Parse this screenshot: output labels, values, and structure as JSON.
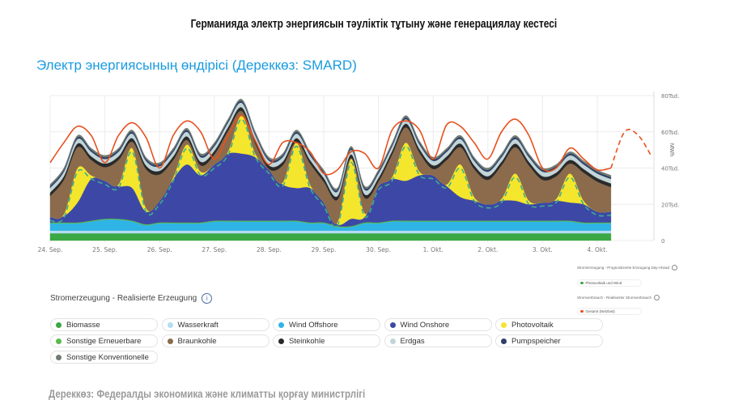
{
  "title": "Германияда электр энергиясын тәуліктік тұтыну және генерациялау кестесі",
  "subtitle": "Электр энергиясының өндірісі (Дереккөз: SMARD)",
  "source": "Дереккөз: Федералды экономика және климатты қорғау министрлігі",
  "legend": {
    "title": "Stromerzeugung - Realisierte Erzeugung",
    "info_icon": "info-icon",
    "items": [
      {
        "label": "Biomasse",
        "color": "#3aa845"
      },
      {
        "label": "Wasserkraft",
        "color": "#b5dcf3"
      },
      {
        "label": "Wind Offshore",
        "color": "#2fb4e6"
      },
      {
        "label": "Wind Onshore",
        "color": "#3d48a6"
      },
      {
        "label": "Photovoltaik",
        "color": "#f4e62c"
      },
      {
        "label": "Sonstige Erneuerbare",
        "color": "#58bb4a"
      },
      {
        "label": "Braunkohle",
        "color": "#8b6b4c"
      },
      {
        "label": "Steinkohle",
        "color": "#2a2a2a"
      },
      {
        "label": "Erdgas",
        "color": "#c2d5d9"
      },
      {
        "label": "Pumpspeicher",
        "color": "#2d3f66"
      },
      {
        "label": "Sonstige Konventionelle",
        "color": "#6f7b73"
      }
    ]
  },
  "right_legend": {
    "forecast_title": "Stromerzeugung - Prognostizierte Erzeugung Day-Ahead",
    "forecast_item": {
      "label": "Photovoltaik und Wind",
      "color": "#3aa845"
    },
    "consumption_title": "Stromverbrauch - Realisierter Stromverbrauch",
    "consumption_item": {
      "label": "Gesamt (Netzlast)",
      "color": "#e8501e"
    }
  },
  "chart_data": {
    "type": "area",
    "stacked": true,
    "ylabel": "MWh",
    "ylim": [
      0,
      80000
    ],
    "y_ticks": [
      "0",
      "20Tsd.",
      "40Tsd.",
      "60Tsd.",
      "80Tsd."
    ],
    "x_ticks": [
      "24. Sep.",
      "25. Sep.",
      "26. Sep.",
      "27. Sep.",
      "28. Sep.",
      "29. Sep.",
      "30. Sep.",
      "1. Okt.",
      "2. Okt.",
      "3. Okt.",
      "4. Okt."
    ],
    "grid": true,
    "unit_scale": 1000,
    "x": [
      "24.09. 00:00",
      "24.09. 06:00",
      "24.09. 12:00",
      "24.09. 18:00",
      "25.09. 00:00",
      "25.09. 06:00",
      "25.09. 12:00",
      "25.09. 18:00",
      "26.09. 00:00",
      "26.09. 06:00",
      "26.09. 12:00",
      "26.09. 18:00",
      "27.09. 00:00",
      "27.09. 06:00",
      "27.09. 12:00",
      "27.09. 18:00",
      "28.09. 00:00",
      "28.09. 06:00",
      "28.09. 12:00",
      "28.09. 18:00",
      "29.09. 00:00",
      "29.09. 06:00",
      "29.09. 12:00",
      "29.09. 18:00",
      "30.09. 00:00",
      "30.09. 06:00",
      "30.09. 12:00",
      "30.09. 18:00",
      "01.10. 00:00",
      "01.10. 06:00",
      "01.10. 12:00",
      "01.10. 18:00",
      "02.10. 00:00",
      "02.10. 06:00",
      "02.10. 12:00",
      "02.10. 18:00",
      "03.10. 00:00",
      "03.10. 06:00",
      "03.10. 12:00",
      "03.10. 18:00",
      "04.10. 00:00",
      "04.10. 06:00"
    ],
    "series": [
      {
        "name": "Biomasse",
        "values": [
          4,
          4,
          4,
          4,
          4,
          4,
          4,
          4,
          4,
          4,
          4,
          4,
          4,
          4,
          4,
          4,
          4,
          4,
          4,
          4,
          4,
          4,
          4,
          4,
          4,
          4,
          4,
          4,
          4,
          4,
          4,
          4,
          4,
          4,
          4,
          4,
          4,
          4,
          4,
          4,
          4,
          4
        ]
      },
      {
        "name": "Wasserkraft",
        "values": [
          1.5,
          1.5,
          1.5,
          1.5,
          1.5,
          1.5,
          1.5,
          1.5,
          1.5,
          1.5,
          1.5,
          1.5,
          1.5,
          1.5,
          1.5,
          1.5,
          1.5,
          1.5,
          1.5,
          1.5,
          1.5,
          1.5,
          1.5,
          1.5,
          1.5,
          1.5,
          1.5,
          1.5,
          1.5,
          1.5,
          1.5,
          1.5,
          1.5,
          1.5,
          1.5,
          1.5,
          1.5,
          1.5,
          1.5,
          1.5,
          1.5,
          1.5
        ]
      },
      {
        "name": "Wind Offshore",
        "values": [
          4,
          4,
          4,
          5,
          6,
          6,
          5,
          3,
          4,
          4,
          4,
          4,
          5,
          5,
          5,
          5,
          5,
          5,
          5,
          4,
          4,
          2,
          2,
          4,
          4,
          5,
          5,
          5,
          5,
          5,
          5,
          5,
          5,
          5,
          5,
          5,
          5,
          5,
          5,
          4,
          4,
          4
        ]
      },
      {
        "name": "Sonstige Erneuerbare",
        "values": [
          0.5,
          0.5,
          0.5,
          0.5,
          0.5,
          0.5,
          0.5,
          0.5,
          0.5,
          0.5,
          0.5,
          0.5,
          0.5,
          0.5,
          0.5,
          0.5,
          0.5,
          0.5,
          0.5,
          0.5,
          0.5,
          0.5,
          0.5,
          0.5,
          0.5,
          0.5,
          0.5,
          0.5,
          0.5,
          0.5,
          0.5,
          0.5,
          0.5,
          0.5,
          0.5,
          0.5,
          0.5,
          0.5,
          0.5,
          0.5,
          0.5,
          0.5
        ]
      },
      {
        "name": "Wind Onshore",
        "values": [
          3,
          3.5,
          11,
          23,
          21,
          18,
          18,
          7,
          12,
          24,
          32,
          26,
          31,
          37,
          37,
          35,
          28,
          20,
          18,
          19,
          11,
          1,
          4,
          3,
          20,
          23,
          22,
          25,
          25,
          19,
          13,
          11,
          9,
          11,
          11,
          9,
          10,
          11,
          10,
          10,
          6,
          6
        ]
      },
      {
        "name": "Photovoltaik",
        "values": [
          0,
          1,
          19,
          2,
          0,
          1,
          22,
          2,
          0,
          1,
          11,
          2,
          0,
          1,
          21,
          2,
          0,
          1,
          25,
          2,
          0,
          1,
          33,
          2,
          0,
          1,
          21,
          2,
          0,
          1,
          18,
          2,
          0,
          1,
          15,
          2,
          0,
          1,
          16,
          2,
          0,
          0
        ]
      },
      {
        "name": "Braunkohle",
        "values": [
          11.5,
          19,
          11.5,
          8.5,
          7.5,
          13.5,
          3.5,
          21.5,
          14.5,
          9.5,
          2.5,
          3.5,
          5.5,
          11.5,
          2.5,
          5.5,
          0.5,
          9.5,
          0.5,
          11.5,
          11.5,
          12.5,
          0.5,
          8.5,
          2.5,
          12.5,
          8.5,
          10.5,
          3.5,
          13.5,
          9.5,
          15.5,
          13.5,
          18.5,
          14.5,
          19.5,
          12.5,
          12.5,
          5.5,
          15.5,
          16.5,
          13.5
        ]
      },
      {
        "name": "Steinkohle",
        "values": [
          2,
          2,
          2,
          2,
          2,
          2,
          2,
          2,
          2,
          2,
          2,
          2,
          2,
          2,
          2,
          2,
          2,
          2,
          2,
          2,
          2,
          2,
          2,
          2,
          2,
          2,
          2,
          2,
          2,
          2,
          2,
          2,
          2,
          2,
          2,
          2,
          2,
          2,
          2,
          2,
          2,
          2
        ]
      },
      {
        "name": "Erdgas",
        "values": [
          2.5,
          2.5,
          2.5,
          2.5,
          2.5,
          2.5,
          2.5,
          2.5,
          2.5,
          2.5,
          2.5,
          2.5,
          2.5,
          2.5,
          2.5,
          2.5,
          2.5,
          2.5,
          2.5,
          2.5,
          2.5,
          2.5,
          2.5,
          2.5,
          2.5,
          2.5,
          2.5,
          2.5,
          2.5,
          2.5,
          2.5,
          2.5,
          2.5,
          2.5,
          2.5,
          2.5,
          2.5,
          2.5,
          2.5,
          2.5,
          2.5,
          2.5
        ]
      },
      {
        "name": "Pumpspeicher",
        "values": [
          1,
          1,
          1,
          1,
          1,
          1,
          1,
          1,
          1,
          1,
          1,
          1,
          1,
          1,
          1,
          1,
          1,
          1,
          1,
          1,
          1,
          1,
          1,
          1,
          1,
          1,
          1,
          1,
          1,
          1,
          1,
          1,
          1,
          1,
          1,
          1,
          1,
          1,
          1,
          1,
          1,
          1
        ]
      },
      {
        "name": "Sonstige Konventionelle",
        "values": [
          1,
          1,
          1,
          1,
          1,
          1,
          1,
          1,
          1,
          1,
          1,
          1,
          1,
          1,
          1,
          1,
          1,
          1,
          1,
          1,
          1,
          1,
          1,
          1,
          1,
          1,
          1,
          1,
          1,
          1,
          1,
          1,
          1,
          1,
          1,
          1,
          1,
          1,
          1,
          1,
          1,
          1
        ]
      }
    ],
    "lines": [
      {
        "name": "Gesamt (Netzlast)",
        "style": "solid",
        "color": "#e8501e",
        "values": [
          43,
          54,
          63,
          58,
          43,
          58,
          65,
          57,
          40,
          58,
          66,
          60,
          45,
          58,
          69,
          55,
          42,
          54,
          54,
          49,
          37,
          39,
          49,
          48,
          40,
          61,
          66,
          61,
          45,
          64,
          63,
          54,
          45,
          60,
          67,
          58,
          40,
          40,
          51,
          45,
          39,
          40
        ]
      },
      {
        "name": "Photovoltaik und Wind",
        "style": "dashed",
        "color": "#3fae8c",
        "values": [
          11,
          12.5,
          38,
          34,
          31,
          29,
          49,
          16,
          20,
          33,
          51,
          36,
          40,
          47,
          67,
          46,
          37,
          30,
          52,
          29,
          19,
          8,
          43,
          13,
          28,
          33,
          52,
          36,
          34,
          29,
          40,
          22,
          18,
          21,
          35,
          20,
          19,
          21,
          35,
          20,
          14,
          14
        ]
      },
      {
        "name": "Gesamt (Netzlast) Prognose",
        "style": "dashed",
        "color": "#e8501e",
        "x": [
          "04.10. 06:00",
          "04.10. 12:00",
          "04.10. 18:00",
          "05.10. 00:00"
        ],
        "values": [
          40,
          60,
          58,
          46
        ]
      }
    ]
  }
}
